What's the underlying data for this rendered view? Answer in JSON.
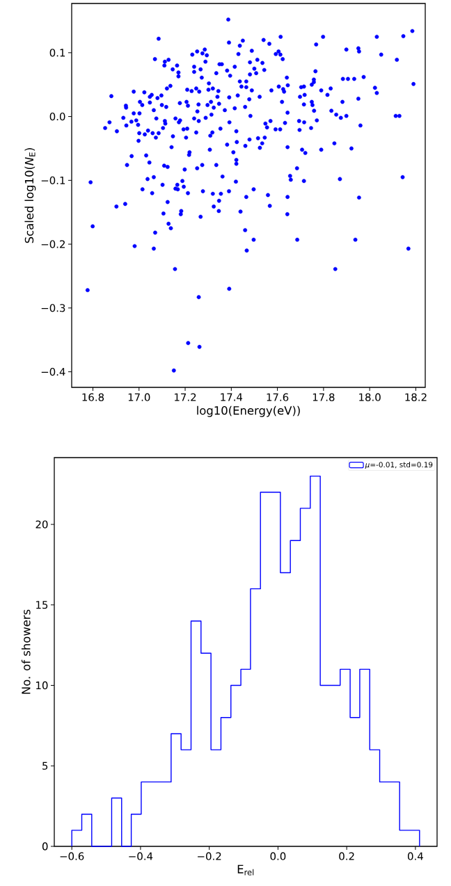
{
  "chart_data": [
    {
      "type": "scatter",
      "xlabel": "log10(Energy(eV))",
      "ylabel": "Scaled log10(*N*$_{E}$)",
      "color": "#0000ff",
      "marker": "circle",
      "xlim": [
        16.708,
        18.241
      ],
      "ylim": [
        -0.4244,
        0.1772
      ],
      "xticks": [
        {
          "value": 16.8,
          "label": "16.8"
        },
        {
          "value": 17.0,
          "label": "17.0"
        },
        {
          "value": 17.2,
          "label": "17.2"
        },
        {
          "value": 17.4,
          "label": "17.4"
        },
        {
          "value": 17.6,
          "label": "17.6"
        },
        {
          "value": 17.8,
          "label": "17.8"
        },
        {
          "value": 18.0,
          "label": "18.0"
        },
        {
          "value": 18.2,
          "label": "18.2"
        }
      ],
      "yticks": [
        {
          "value": -0.4,
          "label": "−0.4"
        },
        {
          "value": -0.3,
          "label": "−0.3"
        },
        {
          "value": -0.2,
          "label": "−0.2"
        },
        {
          "value": -0.1,
          "label": "−0.1"
        },
        {
          "value": 0.0,
          "label": "0.0"
        },
        {
          "value": 0.1,
          "label": "0.1"
        }
      ],
      "x": [
        17.387,
        17.085,
        17.39,
        17.45,
        17.437,
        17.489,
        17.431,
        17.231,
        17.252,
        17.285,
        17.275,
        17.294,
        17.069,
        17.112,
        17.128,
        17.11,
        17.165,
        17.146,
        17.171,
        17.171,
        17.239,
        17.239,
        17.267,
        17.288,
        17.349,
        17.359,
        17.335,
        17.382,
        17.395,
        17.415,
        17.481,
        17.5,
        17.481,
        17.272,
        17.303,
        17.437,
        17.465,
        17.444,
        17.465,
        17.489,
        17.136,
        17.121,
        16.88,
        16.977,
        17.023,
        17.047,
        17.055,
        17.08,
        17.097,
        17.004,
        17.014,
        17.047,
        16.943,
        16.944,
        16.977,
        17.002,
        17.099,
        17.118,
        17.064,
        17.209,
        17.228,
        17.248,
        17.261,
        17.301,
        17.32,
        17.344,
        17.34,
        17.347,
        17.391,
        17.428,
        17.478,
        17.177,
        17.206,
        17.212,
        17.258,
        17.253,
        17.297,
        17.312,
        17.324,
        17.372,
        17.415,
        17.46,
        17.483,
        17.314,
        17.289,
        17.239,
        17.259,
        17.158,
        17.178,
        17.173,
        17.075,
        17.112,
        17.114,
        16.932,
        16.872,
        16.853,
        16.904,
        16.945,
        16.967,
        16.988,
        16.996,
        17.001,
        16.998,
        17.025,
        17.039,
        17.059,
        17.085,
        17.073,
        17.104,
        17.147,
        17.141,
        17.193,
        17.209,
        17.204,
        17.248,
        17.353,
        17.318,
        17.309,
        17.392,
        17.422,
        17.479,
        17.424,
        17.382,
        17.461,
        17.307,
        17.219,
        17.217,
        17.409,
        17.422,
        17.422,
        16.968,
        17.031,
        17.045,
        16.948,
        17.109,
        17.124,
        17.198,
        17.252,
        17.274,
        17.335,
        17.362,
        17.42,
        17.497,
        17.465,
        16.79,
        17.037,
        17.064,
        17.102,
        17.188,
        17.166,
        17.158,
        17.168,
        17.194,
        17.212,
        17.015,
        17.057,
        17.124,
        17.277,
        17.32,
        17.355,
        17.39,
        17.347,
        17.324,
        16.902,
        16.94,
        17.54,
        17.565,
        17.614,
        17.593,
        17.605,
        17.613,
        17.623,
        17.535,
        17.543,
        17.513,
        17.508,
        17.768,
        17.798,
        17.899,
        17.951,
        17.954,
        18.031,
        18.05,
        18.118,
        18.146,
        18.185,
        18.19,
        17.765,
        17.641,
        17.758,
        17.758,
        17.749,
        17.645,
        17.606,
        17.625,
        17.629,
        17.574,
        17.523,
        17.703,
        17.715,
        17.79,
        17.831,
        17.817,
        17.884,
        17.906,
        17.933,
        17.974,
        18.023,
        18.031,
        17.698,
        17.718,
        17.62,
        17.715,
        17.749,
        17.752,
        17.759,
        17.882,
        17.951,
        17.644,
        17.834,
        17.855,
        17.875,
        17.899,
        18.113,
        18.129,
        17.96,
        17.57,
        17.633,
        17.694,
        17.716,
        17.771,
        17.548,
        17.555,
        17.592,
        17.612,
        17.696,
        17.746,
        17.516,
        17.545,
        17.534,
        17.524,
        17.644,
        17.707,
        17.721,
        17.79,
        17.847,
        17.921,
        17.685,
        17.655,
        17.658,
        17.715,
        17.871,
        18.143,
        17.559,
        17.567,
        17.644,
        17.954,
        16.799,
        17.106,
        17.181,
        17.183,
        17.267,
        17.346,
        17.44,
        17.643,
        17.128,
        17.138,
        17.07,
        17.46,
        17.497,
        17.686,
        17.938,
        16.981,
        17.064,
        17.467,
        18.168,
        17.156,
        17.851,
        16.777,
        17.391,
        17.259,
        17.213,
        17.262,
        17.151
      ],
      "values": [
        0.152,
        0.122,
        0.116,
        0.119,
        0.111,
        0.103,
        0.098,
        0.097,
        0.102,
        0.105,
        0.099,
        0.096,
        0.09,
        0.086,
        0.089,
        0.08,
        0.08,
        0.074,
        0.069,
        0.063,
        0.078,
        0.07,
        0.074,
        0.086,
        0.082,
        0.082,
        0.068,
        0.072,
        0.064,
        0.078,
        0.085,
        0.075,
        0.066,
        0.061,
        0.052,
        0.055,
        0.055,
        0.047,
        0.046,
        0.041,
        0.048,
        0.044,
        0.032,
        0.039,
        0.038,
        0.031,
        0.034,
        0.029,
        0.033,
        0.023,
        0.018,
        0.022,
        0.017,
        0.014,
        0.005,
        0.005,
        0.018,
        0.015,
        0.01,
        0.042,
        0.04,
        0.044,
        0.039,
        0.042,
        0.044,
        0.04,
        0.031,
        0.02,
        0.03,
        0.033,
        0.027,
        0.021,
        0.023,
        0.017,
        0.019,
        0.008,
        0.018,
        0.023,
        0.014,
        0.01,
        0.013,
        0.015,
        0.001,
        0.003,
        -0.002,
        -0.003,
        -0.007,
        -0.003,
        -0.006,
        -0.009,
        -0.003,
        -0.007,
        -0.011,
        -0.002,
        -0.009,
        -0.018,
        -0.023,
        -0.014,
        -0.008,
        -0.006,
        -0.013,
        -0.026,
        -0.038,
        -0.028,
        -0.022,
        -0.026,
        -0.026,
        -0.033,
        -0.018,
        -0.031,
        -0.048,
        -0.02,
        -0.019,
        -0.033,
        -0.025,
        -0.019,
        -0.025,
        -0.03,
        -0.009,
        -0.023,
        -0.036,
        -0.04,
        -0.044,
        -0.046,
        -0.052,
        -0.056,
        -0.06,
        -0.056,
        -0.068,
        -0.074,
        -0.062,
        -0.061,
        -0.072,
        -0.076,
        -0.077,
        -0.079,
        -0.083,
        -0.081,
        -0.076,
        -0.076,
        -0.094,
        -0.102,
        -0.114,
        -0.126,
        -0.103,
        -0.098,
        -0.095,
        -0.107,
        -0.101,
        -0.107,
        -0.113,
        -0.114,
        -0.11,
        -0.12,
        -0.114,
        -0.12,
        -0.134,
        -0.117,
        -0.121,
        -0.121,
        -0.117,
        -0.132,
        -0.141,
        -0.141,
        -0.137,
        0.12,
        0.114,
        0.125,
        0.098,
        0.102,
        0.097,
        0.09,
        0.084,
        0.073,
        0.089,
        0.068,
        0.113,
        0.125,
        0.105,
        0.107,
        0.102,
        0.125,
        0.097,
        0.089,
        0.126,
        0.134,
        0.051,
        0.071,
        0.061,
        0.058,
        0.054,
        0.05,
        0.049,
        0.047,
        0.043,
        0.039,
        0.041,
        0.031,
        0.046,
        0.047,
        0.041,
        0.044,
        0.034,
        0.059,
        0.059,
        0.059,
        0.062,
        0.045,
        0.037,
        0.031,
        0.034,
        0.023,
        0.019,
        0.023,
        0.018,
        0.009,
        0.023,
        0.028,
        0.006,
        0.009,
        0.003,
        -0.002,
        0.001,
        0.001,
        0.001,
        -0.014,
        -0.007,
        -0.01,
        -0.007,
        -0.009,
        -0.006,
        -0.011,
        -0.017,
        -0.02,
        -0.02,
        -0.021,
        -0.018,
        -0.034,
        -0.033,
        -0.042,
        -0.049,
        -0.048,
        -0.052,
        -0.057,
        -0.052,
        -0.042,
        -0.05,
        -0.081,
        -0.093,
        -0.099,
        -0.101,
        -0.098,
        -0.095,
        -0.123,
        -0.14,
        -0.126,
        -0.127,
        -0.172,
        -0.152,
        -0.153,
        -0.148,
        -0.157,
        -0.148,
        -0.149,
        -0.153,
        -0.168,
        -0.175,
        -0.182,
        -0.178,
        -0.193,
        -0.193,
        -0.193,
        -0.203,
        -0.207,
        -0.21,
        -0.207,
        -0.239,
        -0.239,
        -0.272,
        -0.27,
        -0.283,
        -0.355,
        -0.361,
        -0.398
      ]
    },
    {
      "type": "histogram",
      "xlabel": "E$_{rel}$",
      "ylabel": "No. of showers",
      "legend": "top right",
      "xlim": [
        -0.651,
        0.463
      ],
      "ylim": [
        0,
        24.15
      ],
      "xticks": [
        {
          "value": -0.6,
          "label": "−0.6"
        },
        {
          "value": -0.4,
          "label": "−0.4"
        },
        {
          "value": -0.2,
          "label": "−0.2"
        },
        {
          "value": 0.0,
          "label": "0.0"
        },
        {
          "value": 0.2,
          "label": "0.2"
        },
        {
          "value": 0.4,
          "label": "0.4"
        }
      ],
      "yticks": [
        0,
        5,
        10,
        15,
        20
      ],
      "bins": [
        -0.6,
        -0.571,
        -0.542,
        -0.513,
        -0.484,
        -0.455,
        -0.427,
        -0.398,
        -0.369,
        -0.34,
        -0.311,
        -0.282,
        -0.253,
        -0.224,
        -0.195,
        -0.166,
        -0.137,
        -0.108,
        -0.08,
        -0.051,
        -0.022,
        0.007,
        0.036,
        0.065,
        0.094,
        0.123,
        0.152,
        0.181,
        0.21,
        0.238,
        0.267,
        0.296,
        0.325,
        0.354,
        0.383,
        0.412
      ],
      "series": [
        {
          "name": "*μ*=-0.01, std=0.19",
          "color": "#0000ff",
          "values": [
            1,
            2,
            0,
            0,
            3,
            0,
            2,
            4,
            4,
            4,
            7,
            6,
            14,
            12,
            6,
            8,
            10,
            11,
            16,
            22,
            22,
            17,
            19,
            21,
            23,
            10,
            10,
            11,
            8,
            11,
            6,
            4,
            4,
            1,
            1
          ]
        }
      ]
    }
  ]
}
